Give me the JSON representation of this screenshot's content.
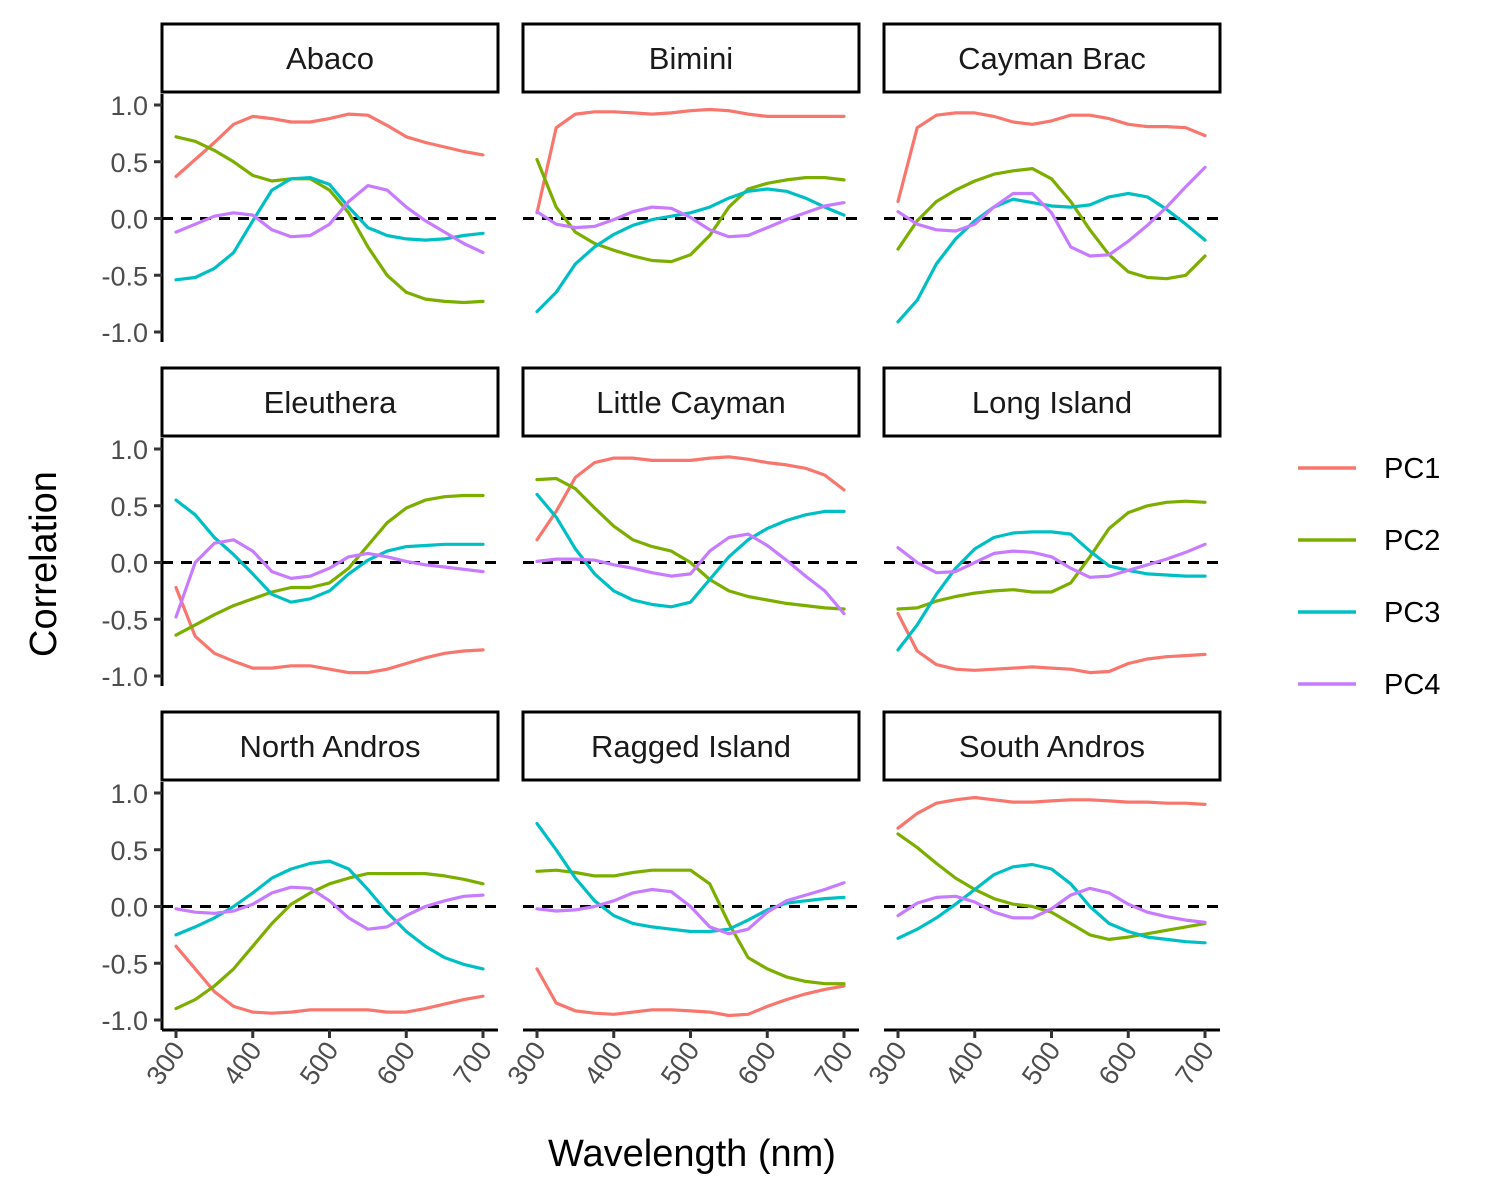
{
  "chart_data": {
    "type": "line",
    "facet_layout": "3x3",
    "xlabel": "Wavelength (nm)",
    "ylabel": "Correlation",
    "xlim": [
      300,
      700
    ],
    "ylim": [
      -1.0,
      1.0
    ],
    "xticks": [
      "300",
      "400",
      "500",
      "600",
      "700"
    ],
    "yticks": [
      "1.0",
      "0.5",
      "0.0",
      "-0.5",
      "-1.0"
    ],
    "reference_line": {
      "y": 0,
      "style": "dashed"
    },
    "grid": false,
    "legend_position": "right",
    "legend": [
      {
        "name": "PC1",
        "color": "#F8766D"
      },
      {
        "name": "PC2",
        "color": "#7CAE00"
      },
      {
        "name": "PC3",
        "color": "#00BFC4"
      },
      {
        "name": "PC4",
        "color": "#C77CFF"
      }
    ],
    "x": [
      300,
      325,
      350,
      375,
      400,
      425,
      450,
      475,
      500,
      525,
      550,
      575,
      600,
      625,
      650,
      675,
      700
    ],
    "panels": [
      {
        "title": "Abaco",
        "series": [
          {
            "name": "PC1",
            "values": [
              0.37,
              0.52,
              0.67,
              0.83,
              0.9,
              0.88,
              0.85,
              0.85,
              0.88,
              0.92,
              0.91,
              0.82,
              0.72,
              0.67,
              0.63,
              0.59,
              0.56
            ]
          },
          {
            "name": "PC2",
            "values": [
              0.72,
              0.68,
              0.6,
              0.5,
              0.38,
              0.33,
              0.35,
              0.35,
              0.25,
              0.05,
              -0.25,
              -0.5,
              -0.65,
              -0.71,
              -0.73,
              -0.74,
              -0.73
            ]
          },
          {
            "name": "PC3",
            "values": [
              -0.54,
              -0.52,
              -0.44,
              -0.3,
              -0.02,
              0.25,
              0.35,
              0.36,
              0.3,
              0.1,
              -0.08,
              -0.15,
              -0.18,
              -0.19,
              -0.18,
              -0.15,
              -0.13
            ]
          },
          {
            "name": "PC4",
            "values": [
              -0.12,
              -0.05,
              0.02,
              0.05,
              0.03,
              -0.1,
              -0.16,
              -0.15,
              -0.05,
              0.15,
              0.29,
              0.25,
              0.1,
              -0.02,
              -0.12,
              -0.22,
              -0.3
            ]
          }
        ]
      },
      {
        "title": "Bimini",
        "series": [
          {
            "name": "PC1",
            "values": [
              0.05,
              0.8,
              0.92,
              0.94,
              0.94,
              0.93,
              0.92,
              0.93,
              0.95,
              0.96,
              0.95,
              0.92,
              0.9,
              0.9,
              0.9,
              0.9,
              0.9
            ]
          },
          {
            "name": "PC2",
            "values": [
              0.52,
              0.1,
              -0.12,
              -0.22,
              -0.28,
              -0.33,
              -0.37,
              -0.38,
              -0.32,
              -0.15,
              0.1,
              0.26,
              0.31,
              0.34,
              0.36,
              0.36,
              0.34
            ]
          },
          {
            "name": "PC3",
            "values": [
              -0.82,
              -0.65,
              -0.4,
              -0.25,
              -0.14,
              -0.06,
              -0.01,
              0.02,
              0.05,
              0.1,
              0.18,
              0.24,
              0.26,
              0.24,
              0.18,
              0.1,
              0.03
            ]
          },
          {
            "name": "PC4",
            "values": [
              0.06,
              -0.05,
              -0.08,
              -0.07,
              -0.01,
              0.06,
              0.1,
              0.09,
              0.01,
              -0.1,
              -0.16,
              -0.15,
              -0.08,
              -0.01,
              0.05,
              0.11,
              0.14
            ]
          }
        ]
      },
      {
        "title": "Cayman Brac",
        "series": [
          {
            "name": "PC1",
            "values": [
              0.15,
              0.8,
              0.91,
              0.93,
              0.93,
              0.9,
              0.85,
              0.83,
              0.86,
              0.91,
              0.91,
              0.88,
              0.83,
              0.81,
              0.81,
              0.8,
              0.73
            ]
          },
          {
            "name": "PC2",
            "values": [
              -0.27,
              -0.02,
              0.15,
              0.25,
              0.33,
              0.39,
              0.42,
              0.44,
              0.35,
              0.15,
              -0.1,
              -0.32,
              -0.47,
              -0.52,
              -0.53,
              -0.5,
              -0.33
            ]
          },
          {
            "name": "PC3",
            "values": [
              -0.91,
              -0.72,
              -0.4,
              -0.18,
              -0.02,
              0.1,
              0.17,
              0.14,
              0.11,
              0.1,
              0.12,
              0.19,
              0.22,
              0.19,
              0.08,
              -0.05,
              -0.19
            ]
          },
          {
            "name": "PC4",
            "values": [
              0.06,
              -0.05,
              -0.1,
              -0.11,
              -0.05,
              0.1,
              0.22,
              0.22,
              0.05,
              -0.25,
              -0.33,
              -0.32,
              -0.2,
              -0.06,
              0.1,
              0.28,
              0.45
            ]
          }
        ]
      },
      {
        "title": "Eleuthera",
        "series": [
          {
            "name": "PC1",
            "values": [
              -0.22,
              -0.65,
              -0.8,
              -0.87,
              -0.93,
              -0.93,
              -0.91,
              -0.91,
              -0.94,
              -0.97,
              -0.97,
              -0.94,
              -0.89,
              -0.84,
              -0.8,
              -0.78,
              -0.77
            ]
          },
          {
            "name": "PC2",
            "values": [
              -0.64,
              -0.55,
              -0.46,
              -0.38,
              -0.32,
              -0.26,
              -0.22,
              -0.22,
              -0.18,
              -0.05,
              0.15,
              0.35,
              0.48,
              0.55,
              0.58,
              0.59,
              0.59
            ]
          },
          {
            "name": "PC3",
            "values": [
              0.55,
              0.42,
              0.22,
              0.07,
              -0.1,
              -0.28,
              -0.35,
              -0.32,
              -0.25,
              -0.1,
              0.02,
              0.1,
              0.14,
              0.15,
              0.16,
              0.16,
              0.16
            ]
          },
          {
            "name": "PC4",
            "values": [
              -0.48,
              0.0,
              0.17,
              0.2,
              0.1,
              -0.08,
              -0.14,
              -0.12,
              -0.05,
              0.05,
              0.08,
              0.05,
              0.01,
              -0.02,
              -0.04,
              -0.06,
              -0.08
            ]
          }
        ]
      },
      {
        "title": "Little Cayman",
        "series": [
          {
            "name": "PC1",
            "values": [
              0.2,
              0.45,
              0.75,
              0.88,
              0.92,
              0.92,
              0.9,
              0.9,
              0.9,
              0.92,
              0.93,
              0.91,
              0.88,
              0.86,
              0.83,
              0.77,
              0.64
            ]
          },
          {
            "name": "PC2",
            "values": [
              0.73,
              0.74,
              0.65,
              0.48,
              0.32,
              0.2,
              0.14,
              0.1,
              0.0,
              -0.15,
              -0.25,
              -0.3,
              -0.33,
              -0.36,
              -0.38,
              -0.4,
              -0.41
            ]
          },
          {
            "name": "PC3",
            "values": [
              0.6,
              0.4,
              0.12,
              -0.1,
              -0.25,
              -0.33,
              -0.37,
              -0.39,
              -0.35,
              -0.15,
              0.05,
              0.2,
              0.3,
              0.37,
              0.42,
              0.45,
              0.45
            ]
          },
          {
            "name": "PC4",
            "values": [
              0.01,
              0.03,
              0.03,
              0.02,
              -0.02,
              -0.05,
              -0.09,
              -0.12,
              -0.1,
              0.1,
              0.22,
              0.25,
              0.15,
              0.02,
              -0.12,
              -0.25,
              -0.45
            ]
          }
        ]
      },
      {
        "title": "Long Island",
        "series": [
          {
            "name": "PC1",
            "values": [
              -0.45,
              -0.78,
              -0.9,
              -0.94,
              -0.95,
              -0.94,
              -0.93,
              -0.92,
              -0.93,
              -0.94,
              -0.97,
              -0.96,
              -0.89,
              -0.85,
              -0.83,
              -0.82,
              -0.81
            ]
          },
          {
            "name": "PC2",
            "values": [
              -0.41,
              -0.4,
              -0.34,
              -0.3,
              -0.27,
              -0.25,
              -0.24,
              -0.26,
              -0.26,
              -0.18,
              0.05,
              0.3,
              0.44,
              0.5,
              0.53,
              0.54,
              0.53
            ]
          },
          {
            "name": "PC3",
            "values": [
              -0.77,
              -0.55,
              -0.28,
              -0.05,
              0.12,
              0.22,
              0.26,
              0.27,
              0.27,
              0.25,
              0.1,
              -0.03,
              -0.07,
              -0.1,
              -0.11,
              -0.12,
              -0.12
            ]
          },
          {
            "name": "PC4",
            "values": [
              0.13,
              0.0,
              -0.09,
              -0.08,
              0.0,
              0.08,
              0.1,
              0.09,
              0.05,
              -0.05,
              -0.13,
              -0.12,
              -0.07,
              -0.02,
              0.03,
              0.09,
              0.16
            ]
          }
        ]
      },
      {
        "title": "North Andros",
        "series": [
          {
            "name": "PC1",
            "values": [
              -0.35,
              -0.55,
              -0.75,
              -0.88,
              -0.93,
              -0.94,
              -0.93,
              -0.91,
              -0.91,
              -0.91,
              -0.91,
              -0.93,
              -0.93,
              -0.9,
              -0.86,
              -0.82,
              -0.79
            ]
          },
          {
            "name": "PC2",
            "values": [
              -0.9,
              -0.82,
              -0.7,
              -0.55,
              -0.35,
              -0.15,
              0.02,
              0.12,
              0.2,
              0.25,
              0.29,
              0.29,
              0.29,
              0.29,
              0.27,
              0.24,
              0.2
            ]
          },
          {
            "name": "PC3",
            "values": [
              -0.25,
              -0.18,
              -0.1,
              0.0,
              0.12,
              0.25,
              0.33,
              0.38,
              0.4,
              0.33,
              0.15,
              -0.05,
              -0.22,
              -0.35,
              -0.45,
              -0.51,
              -0.55
            ]
          },
          {
            "name": "PC4",
            "values": [
              -0.02,
              -0.05,
              -0.06,
              -0.04,
              0.02,
              0.12,
              0.17,
              0.16,
              0.05,
              -0.1,
              -0.2,
              -0.18,
              -0.08,
              0.0,
              0.05,
              0.09,
              0.1
            ]
          }
        ]
      },
      {
        "title": "Ragged Island",
        "series": [
          {
            "name": "PC1",
            "values": [
              -0.55,
              -0.85,
              -0.92,
              -0.94,
              -0.95,
              -0.93,
              -0.91,
              -0.91,
              -0.92,
              -0.93,
              -0.96,
              -0.95,
              -0.88,
              -0.82,
              -0.77,
              -0.73,
              -0.7
            ]
          },
          {
            "name": "PC2",
            "values": [
              0.31,
              0.32,
              0.3,
              0.27,
              0.27,
              0.3,
              0.32,
              0.32,
              0.32,
              0.2,
              -0.15,
              -0.45,
              -0.55,
              -0.62,
              -0.66,
              -0.68,
              -0.68
            ]
          },
          {
            "name": "PC3",
            "values": [
              0.73,
              0.5,
              0.25,
              0.05,
              -0.08,
              -0.15,
              -0.18,
              -0.2,
              -0.22,
              -0.22,
              -0.2,
              -0.12,
              -0.03,
              0.03,
              0.05,
              0.07,
              0.08
            ]
          },
          {
            "name": "PC4",
            "values": [
              -0.02,
              -0.04,
              -0.03,
              0.0,
              0.05,
              0.12,
              0.15,
              0.13,
              0.0,
              -0.18,
              -0.24,
              -0.2,
              -0.05,
              0.05,
              0.1,
              0.15,
              0.21
            ]
          }
        ]
      },
      {
        "title": "South Andros",
        "series": [
          {
            "name": "PC1",
            "values": [
              0.69,
              0.82,
              0.91,
              0.94,
              0.96,
              0.94,
              0.92,
              0.92,
              0.93,
              0.94,
              0.94,
              0.93,
              0.92,
              0.92,
              0.91,
              0.91,
              0.9
            ]
          },
          {
            "name": "PC2",
            "values": [
              0.64,
              0.52,
              0.38,
              0.25,
              0.15,
              0.07,
              0.02,
              0.0,
              -0.05,
              -0.15,
              -0.25,
              -0.29,
              -0.27,
              -0.24,
              -0.21,
              -0.18,
              -0.15
            ]
          },
          {
            "name": "PC3",
            "values": [
              -0.28,
              -0.2,
              -0.1,
              0.02,
              0.15,
              0.28,
              0.35,
              0.37,
              0.33,
              0.2,
              0.0,
              -0.15,
              -0.22,
              -0.27,
              -0.29,
              -0.31,
              -0.32
            ]
          },
          {
            "name": "PC4",
            "values": [
              -0.08,
              0.03,
              0.08,
              0.09,
              0.04,
              -0.05,
              -0.1,
              -0.1,
              -0.02,
              0.1,
              0.16,
              0.12,
              0.02,
              -0.05,
              -0.09,
              -0.12,
              -0.14
            ]
          }
        ]
      }
    ]
  }
}
